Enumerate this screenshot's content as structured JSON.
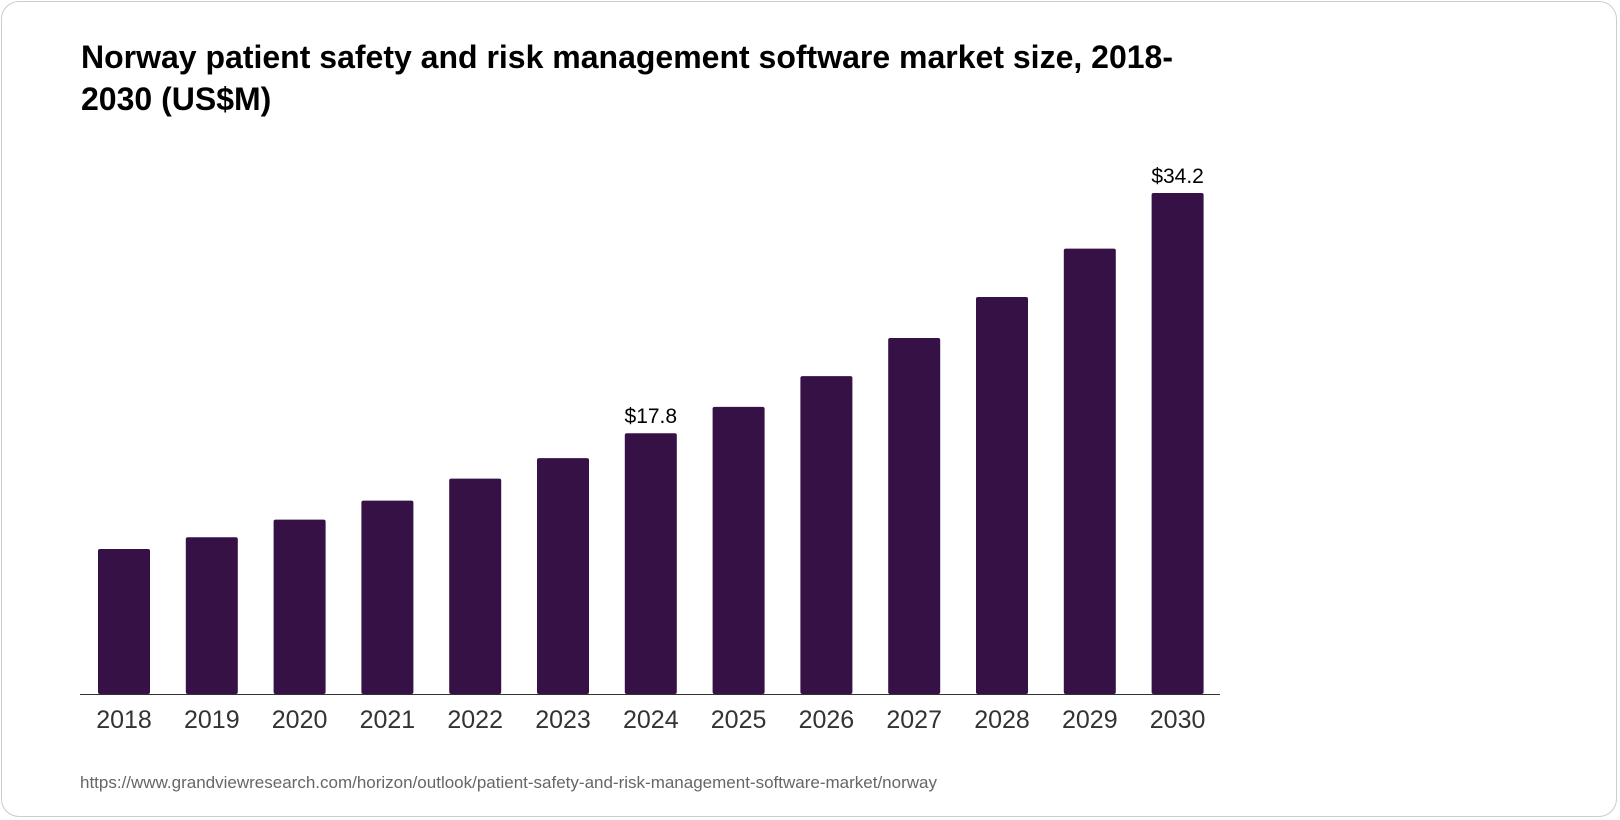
{
  "chart_data": {
    "type": "bar",
    "title": "Norway patient safety and risk management software market size, 2018-2030 (US$M)",
    "categories": [
      "2018",
      "2019",
      "2020",
      "2021",
      "2022",
      "2023",
      "2024",
      "2025",
      "2026",
      "2027",
      "2028",
      "2029",
      "2030"
    ],
    "values": [
      9.9,
      10.7,
      11.9,
      13.2,
      14.7,
      16.1,
      17.8,
      19.6,
      21.7,
      24.3,
      27.1,
      30.4,
      34.2
    ],
    "data_labels": {
      "2024": "$17.8",
      "2030": "$34.2"
    },
    "xlabel": "",
    "ylabel": "US$M",
    "ylim": [
      0,
      34.2
    ],
    "grid": false,
    "bar_color": "#361146"
  },
  "source": "https://www.grandviewresearch.com/horizon/outlook/patient-safety-and-risk-management-software-market/norway"
}
